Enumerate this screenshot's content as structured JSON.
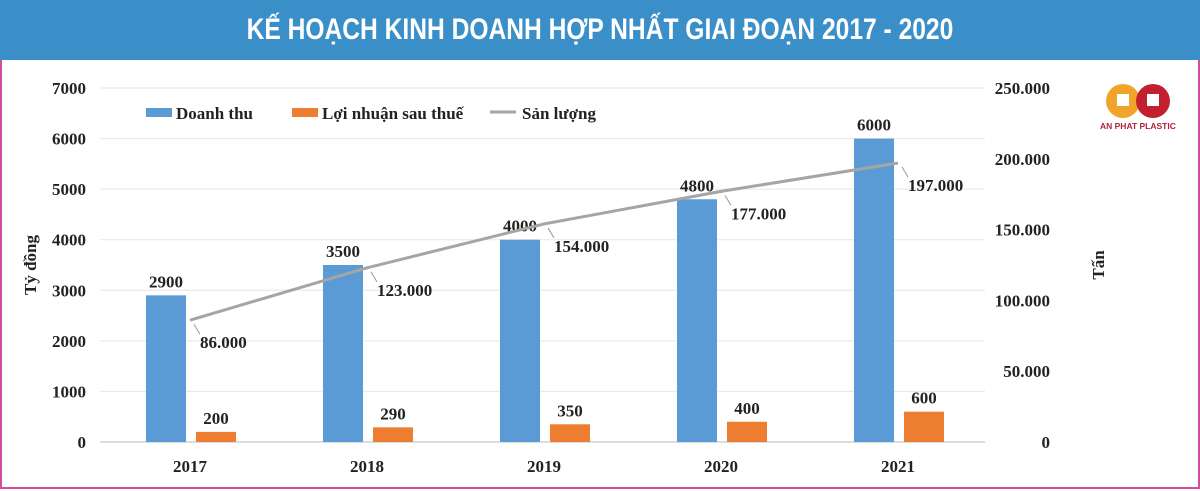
{
  "title": "KẾ HOẠCH KINH DOANH HỢP NHẤT GIAI ĐOẠN 2017 - 2020",
  "logo": {
    "text": "AN PHAT PLASTIC"
  },
  "chart_data": {
    "type": "bar",
    "categories": [
      "2017",
      "2018",
      "2019",
      "2020",
      "2021"
    ],
    "series": [
      {
        "name": "Doanh thu",
        "type": "bar",
        "axis": "left",
        "color": "#5b9bd5",
        "values": [
          2900,
          3500,
          4000,
          4800,
          6000
        ],
        "labels": [
          "2900",
          "3500",
          "4000",
          "4800",
          "6000"
        ]
      },
      {
        "name": "Lợi nhuận sau thuế",
        "type": "bar",
        "axis": "left",
        "color": "#ed7d31",
        "values": [
          200,
          290,
          350,
          400,
          600
        ],
        "labels": [
          "200",
          "290",
          "350",
          "400",
          "600"
        ]
      },
      {
        "name": "Sản lượng",
        "type": "line",
        "axis": "right",
        "color": "#a5a5a5",
        "values": [
          86000,
          123000,
          154000,
          177000,
          197000
        ],
        "labels": [
          "86.000",
          "123.000",
          "154.000",
          "177.000",
          "197.000"
        ]
      }
    ],
    "ylabel": "Tỷ đồng",
    "y2label": "Tấn",
    "ylim": [
      0,
      7000
    ],
    "y2lim": [
      0,
      250000
    ],
    "yticks": [
      "0",
      "1000",
      "2000",
      "3000",
      "4000",
      "5000",
      "6000",
      "7000"
    ],
    "y2ticks": [
      "0",
      "50.000",
      "100.000",
      "150.000",
      "200.000",
      "250.000"
    ],
    "grid": true,
    "legend": "top-left"
  }
}
